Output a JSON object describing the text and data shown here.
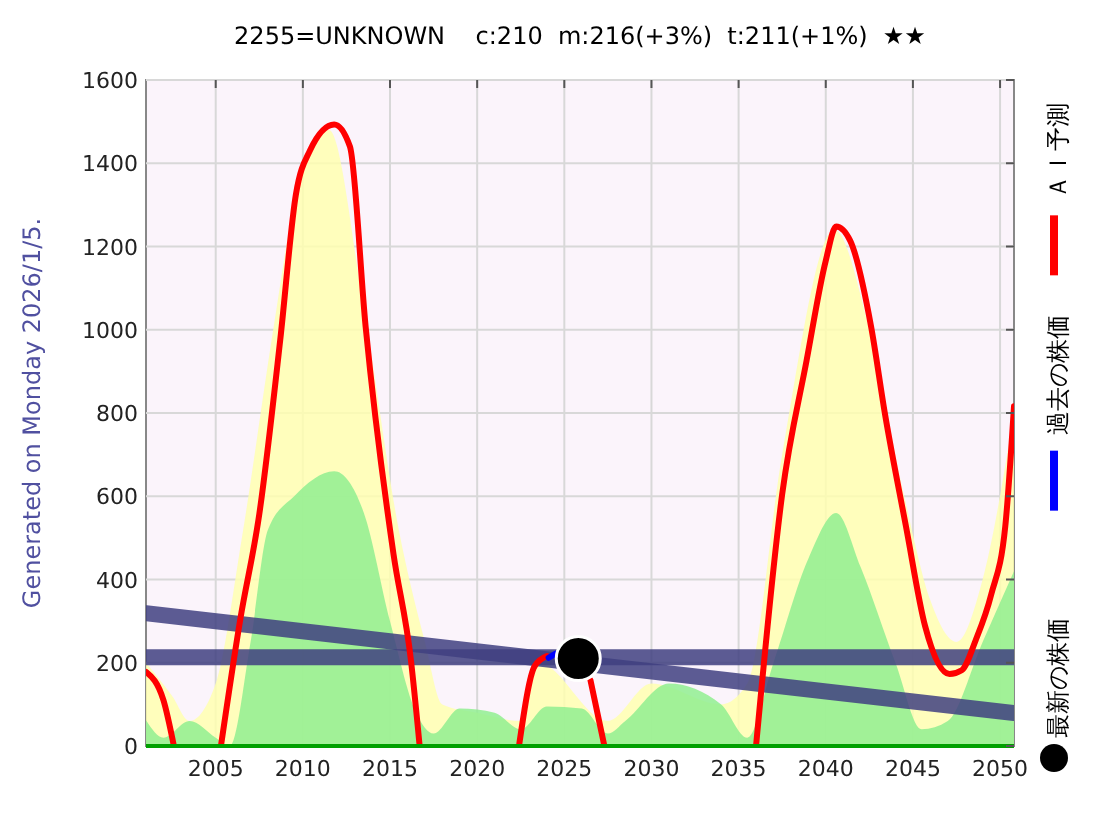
{
  "chart_data": {
    "type": "line",
    "title": "2255=UNKNOWN    c:210  m:216(+3%)  t:211(+1%)  ★★",
    "annotations": [
      "Generated on Monday 2026/1/5."
    ],
    "xlim": [
      2001,
      2050.8
    ],
    "xticks": [
      2005,
      2010,
      2015,
      2020,
      2025,
      2030,
      2035,
      2040,
      2045,
      2050
    ],
    "ylim": [
      0,
      1600
    ],
    "yticks": [
      0,
      200,
      400,
      600,
      800,
      1000,
      1200,
      1400,
      1600
    ],
    "grid": true,
    "legend": "right",
    "ref_lines": [
      {
        "axis": "y",
        "value": 213,
        "color": "#404080"
      }
    ],
    "series": [
      {
        "type": "area",
        "color": "#ffffb0",
        "x": [
          2001,
          2002.5,
          2003.5,
          2005,
          2006.5,
          2008.3,
          2009.5,
          2011.5,
          2013.5,
          2015.5,
          2017,
          2018,
          2020,
          2022.5,
          2023.5,
          2027.5,
          2030,
          2034,
          2035.5,
          2037.5,
          2040.5,
          2042.5,
          2044.5,
          2046,
          2047.5,
          2049,
          2050.8
        ],
        "values": [
          200,
          120,
          60,
          150,
          500,
          1000,
          1300,
          1480,
          1050,
          520,
          250,
          100,
          80,
          60,
          200,
          60,
          150,
          100,
          150,
          700,
          1240,
          1000,
          600,
          350,
          250,
          400,
          800
        ]
      },
      {
        "type": "area",
        "color": "#90ee90",
        "x": [
          2001,
          2002,
          2003.5,
          2005,
          2005.8,
          2007,
          2008,
          2009.5,
          2011.8,
          2013.5,
          2015,
          2016.5,
          2017.5,
          2019,
          2021,
          2022.5,
          2024,
          2026,
          2027.5,
          2028.5,
          2031,
          2034,
          2035.5,
          2037,
          2039,
          2040.6,
          2042,
          2044,
          2045.5,
          2047,
          2049,
          2050.8
        ],
        "values": [
          62,
          20,
          60,
          20,
          0,
          250,
          520,
          600,
          660,
          560,
          300,
          80,
          30,
          90,
          80,
          40,
          95,
          90,
          30,
          60,
          150,
          100,
          20,
          200,
          450,
          560,
          430,
          200,
          40,
          60,
          250,
          420
        ]
      },
      {
        "type": "line",
        "color": "#404080",
        "x": [
          2001,
          2050.8
        ],
        "values": [
          319,
          79
        ]
      },
      {
        "name": "ＡＩ予測",
        "color": "#ff0000",
        "x": [
          2001,
          2002,
          2002.6,
          2004,
          2005.3,
          2006.4,
          2007.5,
          2008.7,
          2009.6,
          2010.4,
          2011.8,
          2012.7,
          2013.6,
          2015.2,
          2016.2,
          2016.7,
          2019,
          2022.4,
          2023.3,
          2024,
          2025,
          2026.5,
          2027.3,
          2030,
          2036,
          2037.5,
          2038.9,
          2040,
          2040.6,
          2041.4,
          2042.6,
          2043.4,
          2044.6,
          2045.7,
          2047.1,
          2047.8,
          2048.6,
          2049.5,
          2050.3,
          2050.8
        ],
        "values": [
          178,
          110,
          0,
          null,
          0,
          302,
          557,
          975,
          1325,
          1430,
          1493,
          1440,
          1008,
          461,
          206,
          0,
          null,
          0,
          192,
          216,
          null,
          158,
          0,
          null,
          0,
          605,
          926,
          1166,
          1248,
          1214,
          1008,
          797,
          528,
          288,
          173,
          182,
          254,
          365,
          528,
          816
        ]
      },
      {
        "type": "line",
        "name": "過去の株価",
        "color": "#0000ff",
        "x": [
          2024.1,
          2024.5
        ],
        "values": [
          212,
          222
        ]
      },
      {
        "type": "scatter",
        "name": "最新の株価",
        "color": "#000000",
        "marker": "circle",
        "x": [
          2025.8
        ],
        "values": [
          210
        ]
      }
    ]
  }
}
